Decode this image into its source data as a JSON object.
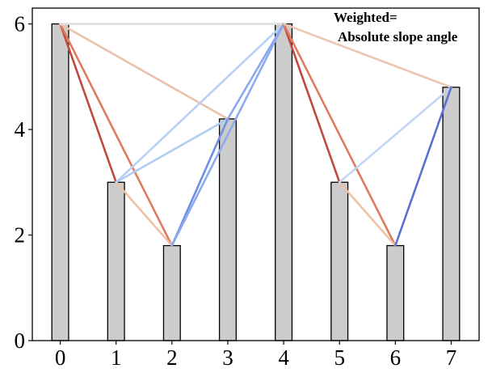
{
  "chart_data": {
    "type": "bar",
    "title": "",
    "xlabel": "",
    "ylabel": "",
    "categories": [
      "0",
      "1",
      "2",
      "3",
      "4",
      "5",
      "6",
      "7"
    ],
    "values": [
      6,
      3,
      1.8,
      4.2,
      6,
      3,
      1.8,
      4.8
    ],
    "xlim": [
      -0.5,
      7.5
    ],
    "ylim": [
      0,
      6.3
    ],
    "y_ticks": [
      0,
      2,
      4,
      6
    ],
    "x_ticks": [
      0,
      1,
      2,
      3,
      4,
      5,
      6,
      7
    ],
    "grid": false,
    "bar_color": "#cccccc",
    "bar_edge_color": "#000000",
    "annotation": [
      "Weighted=",
      "Absolute slope angle"
    ],
    "visibility_edges": [
      {
        "from": 0,
        "to": 1,
        "color": "#c04a3f"
      },
      {
        "from": 0,
        "to": 2,
        "color": "#de7b5e"
      },
      {
        "from": 0,
        "to": 3,
        "color": "#eac1aa"
      },
      {
        "from": 0,
        "to": 4,
        "color": "#dddddd"
      },
      {
        "from": 1,
        "to": 2,
        "color": "#f0c0a4"
      },
      {
        "from": 1,
        "to": 3,
        "color": "#b2cbf2"
      },
      {
        "from": 1,
        "to": 4,
        "color": "#b9d0f5"
      },
      {
        "from": 2,
        "to": 3,
        "color": "#6e8fe6"
      },
      {
        "from": 2,
        "to": 4,
        "color": "#8eabef"
      },
      {
        "from": 3,
        "to": 4,
        "color": "#8aaaf0"
      },
      {
        "from": 4,
        "to": 5,
        "color": "#c04a3f"
      },
      {
        "from": 4,
        "to": 6,
        "color": "#de7b5e"
      },
      {
        "from": 4,
        "to": 7,
        "color": "#eac6b3"
      },
      {
        "from": 5,
        "to": 6,
        "color": "#f0c0a4"
      },
      {
        "from": 5,
        "to": 7,
        "color": "#c3d5f4"
      },
      {
        "from": 6,
        "to": 7,
        "color": "#5a71d4"
      }
    ]
  }
}
